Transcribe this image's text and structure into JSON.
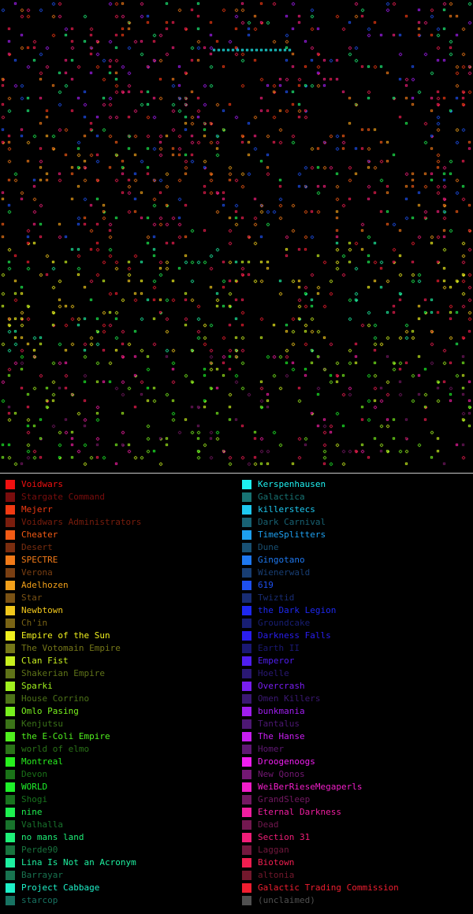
{
  "legend": [
    {
      "name": "Voidwars",
      "color": "#f01010"
    },
    {
      "name": "Stargate Command",
      "color": "#7a0d0d"
    },
    {
      "name": "Mejerr",
      "color": "#f23a12"
    },
    {
      "name": "Voidwars Administrators",
      "color": "#7a1d0d"
    },
    {
      "name": "Cheater",
      "color": "#f25a14"
    },
    {
      "name": "Desert",
      "color": "#7a2d0f"
    },
    {
      "name": "SPECTRE",
      "color": "#f27a18"
    },
    {
      "name": "Verona",
      "color": "#7a3f12"
    },
    {
      "name": "Adelhozen",
      "color": "#f2a01a"
    },
    {
      "name": "Star",
      "color": "#7a5214"
    },
    {
      "name": "Newbtown",
      "color": "#f2c81c"
    },
    {
      "name": "Ch'in",
      "color": "#7a6415"
    },
    {
      "name": "Empire of the Sun",
      "color": "#f0f01e"
    },
    {
      "name": "The Votomain Empire",
      "color": "#757718"
    },
    {
      "name": "Clan Fist",
      "color": "#c8f01e"
    },
    {
      "name": "Shakerian Empire",
      "color": "#5f7318"
    },
    {
      "name": "Sparki",
      "color": "#a0f01e"
    },
    {
      "name": "House Corrino",
      "color": "#4d7318"
    },
    {
      "name": "Omlo Pasing",
      "color": "#78f01e"
    },
    {
      "name": "Kenjutsu",
      "color": "#3b7318"
    },
    {
      "name": "the E-Coli Empire",
      "color": "#50f01e"
    },
    {
      "name": "world of elmo",
      "color": "#2a7318"
    },
    {
      "name": "Montreal",
      "color": "#28f01e"
    },
    {
      "name": "Devon",
      "color": "#1a7318"
    },
    {
      "name": "WORLD",
      "color": "#1ef02a"
    },
    {
      "name": "Shogi",
      "color": "#18731e"
    },
    {
      "name": "nine",
      "color": "#1ef050"
    },
    {
      "name": "Valhalla",
      "color": "#18732c"
    },
    {
      "name": "no mans land",
      "color": "#1ef078"
    },
    {
      "name": "Perde90",
      "color": "#18733e"
    },
    {
      "name": "Lina Is Not an Acronym",
      "color": "#1ef0a0"
    },
    {
      "name": "Barrayar",
      "color": "#187350"
    },
    {
      "name": "Project Cabbage",
      "color": "#1ef0c8"
    },
    {
      "name": "starcop",
      "color": "#187362"
    },
    {
      "name": "Kerspenhausen",
      "color": "#1ef0f0"
    },
    {
      "name": "Galactica",
      "color": "#187373"
    },
    {
      "name": "killerstecs",
      "color": "#1ec8f0"
    },
    {
      "name": "Dark Carnival",
      "color": "#186273"
    },
    {
      "name": "TimeSplitters",
      "color": "#1ea0f0"
    },
    {
      "name": "Dune",
      "color": "#185073"
    },
    {
      "name": "Gingotano",
      "color": "#1e78f0"
    },
    {
      "name": "Wienerwald",
      "color": "#183e73"
    },
    {
      "name": "619",
      "color": "#1e50f0"
    },
    {
      "name": "Twiztid",
      "color": "#182c73"
    },
    {
      "name": "the Dark Legion",
      "color": "#1e28f0"
    },
    {
      "name": "Groundcake",
      "color": "#181e73"
    },
    {
      "name": "Darkness Falls",
      "color": "#2a1ef0"
    },
    {
      "name": "Earth II",
      "color": "#1a1873"
    },
    {
      "name": "Emperor",
      "color": "#501ef0"
    },
    {
      "name": "Hoelle",
      "color": "#2a1873"
    },
    {
      "name": "Overcrash",
      "color": "#781ef0"
    },
    {
      "name": "Omen Killers",
      "color": "#3b1873"
    },
    {
      "name": "bunkmania",
      "color": "#a01ef0"
    },
    {
      "name": "Tantalus",
      "color": "#4d1873"
    },
    {
      "name": "The Hanse",
      "color": "#c81ef0"
    },
    {
      "name": "Homer",
      "color": "#5f1873"
    },
    {
      "name": "Droogenoogs",
      "color": "#f01ef0"
    },
    {
      "name": "New Qonos",
      "color": "#731873"
    },
    {
      "name": "WeiBerRieseMegaperls",
      "color": "#f01ec8"
    },
    {
      "name": "GrandSleep",
      "color": "#731862"
    },
    {
      "name": "Eternal Darkness",
      "color": "#f01ea0"
    },
    {
      "name": "Dead",
      "color": "#731850"
    },
    {
      "name": "Section 31",
      "color": "#f01e78"
    },
    {
      "name": "Laggan",
      "color": "#73183e"
    },
    {
      "name": "Biotown",
      "color": "#f01e50"
    },
    {
      "name": "altonia",
      "color": "#73182c"
    },
    {
      "name": "Galactic Trading Commission",
      "color": "#f01e30"
    },
    {
      "name": "(unclaimed)",
      "color": "#505050"
    }
  ]
}
